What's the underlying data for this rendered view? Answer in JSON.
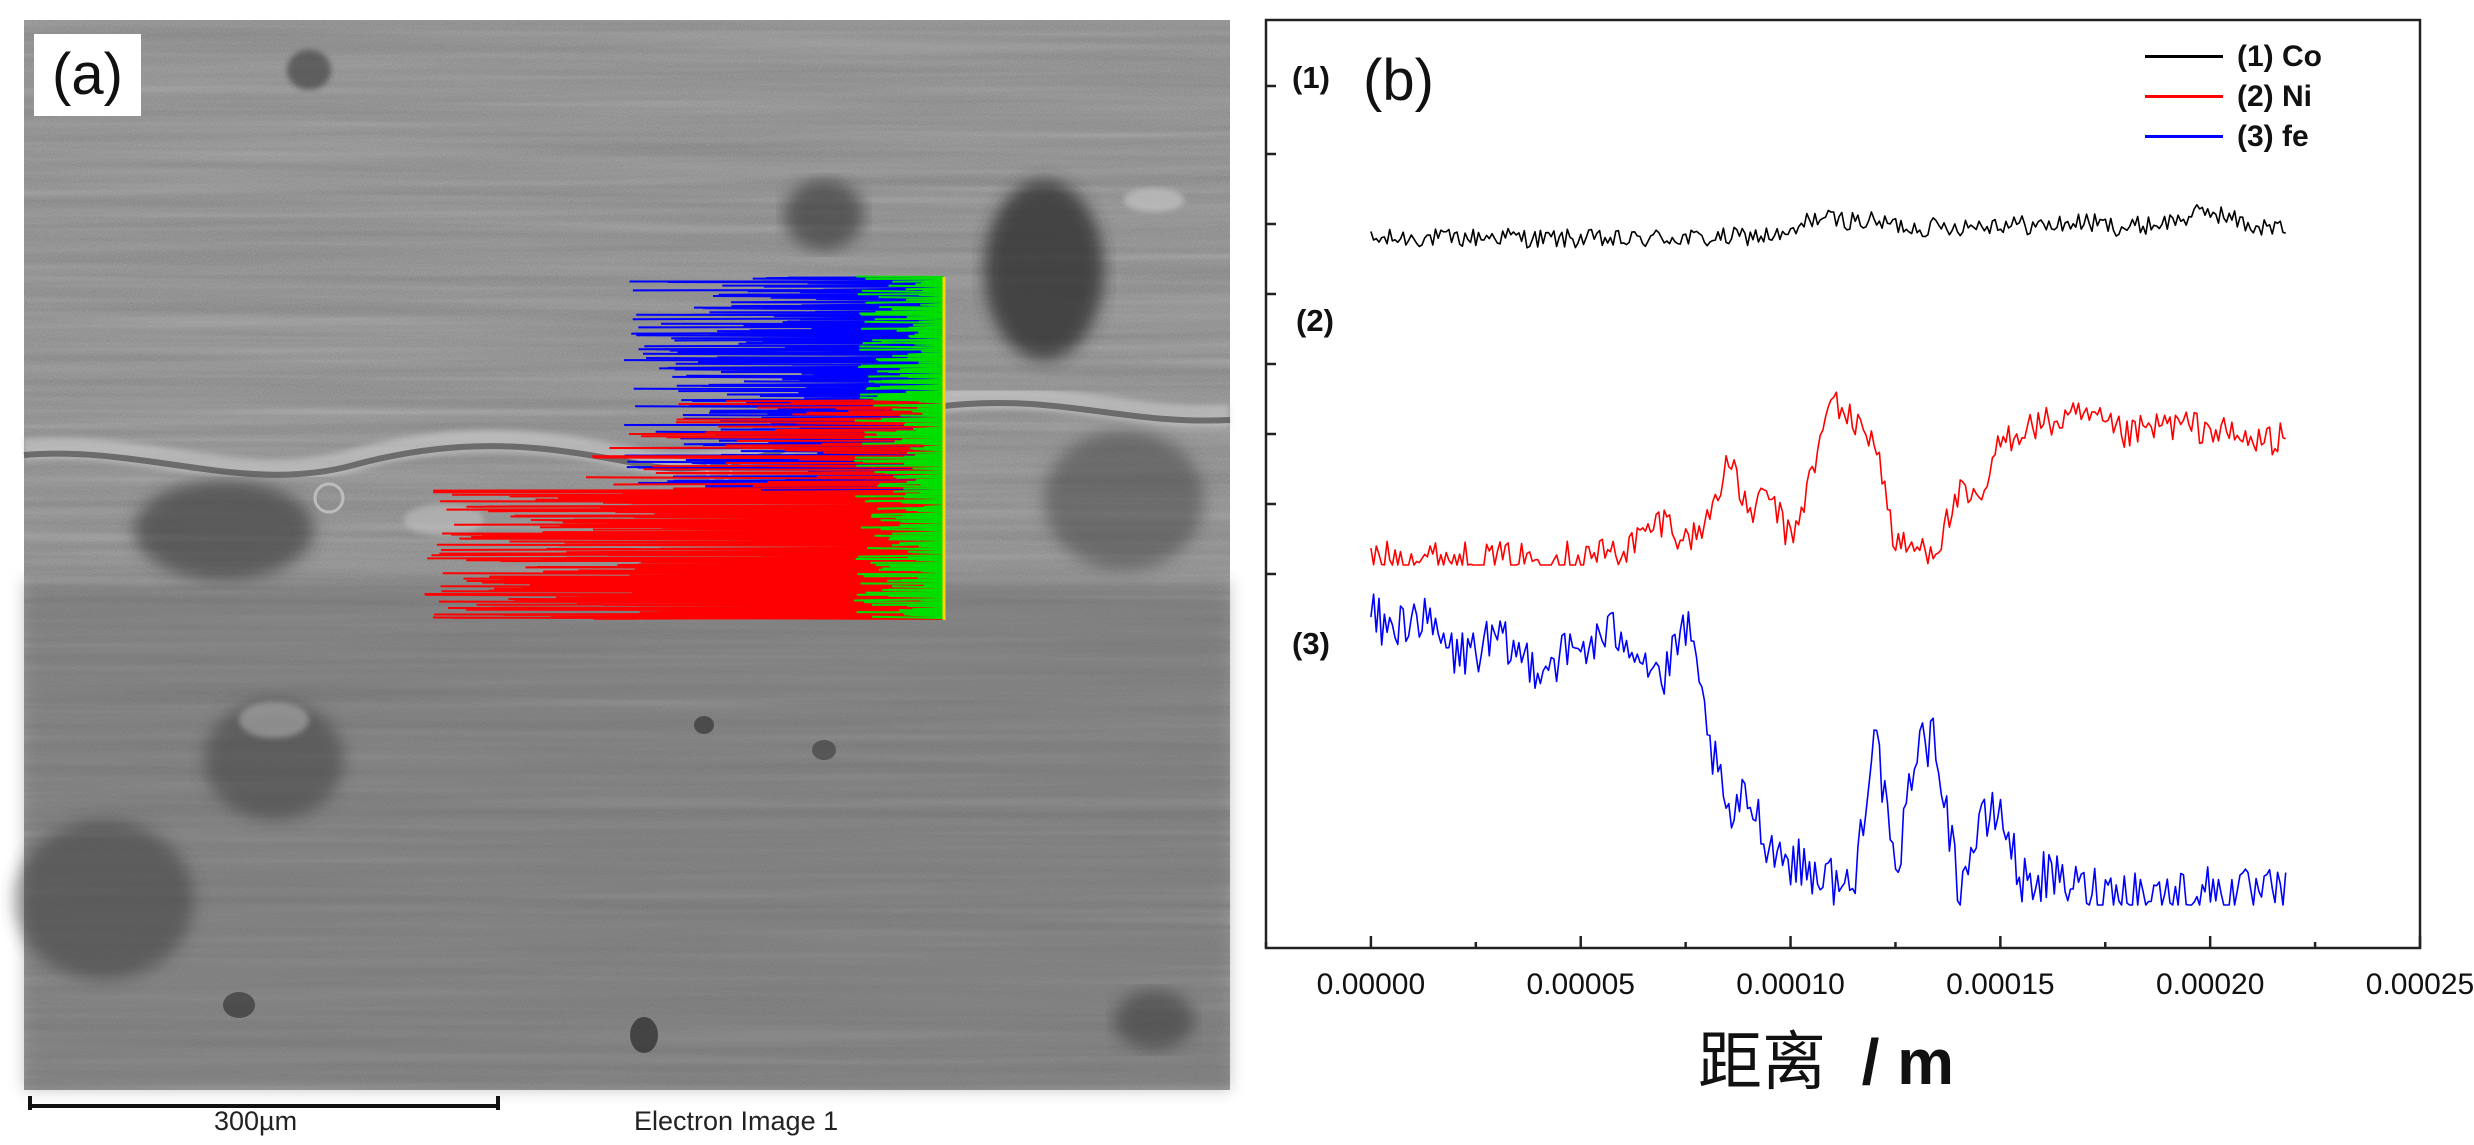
{
  "panel_a": {
    "label": "(a)",
    "scale_bar_text": "300µm",
    "caption": "Electron Image 1",
    "overlay_colors": {
      "co": "#00e000",
      "ni": "#ff0000",
      "fe": "#0000ff",
      "line": "#ffd400"
    }
  },
  "panel_b": {
    "label": "(b)",
    "series_labels": [
      "(1)",
      "(2)",
      "(3)"
    ]
  },
  "chart_data": {
    "type": "line",
    "xlabel": "距离 / m",
    "xlabel_main": "距离",
    "xlabel_unit": "/ m",
    "ylabel": "",
    "xlim": [
      -2.5e-05,
      0.00025
    ],
    "x_ticks": [
      "0.00000",
      "0.00005",
      "0.00010",
      "0.00015",
      "0.00020",
      "0.00025"
    ],
    "x_tick_values": [
      0,
      5e-05,
      0.0001,
      0.00015,
      0.0002,
      0.00025
    ],
    "y_ticks_shown": false,
    "legend_position": "top-right",
    "series": [
      {
        "name": "(1) Co",
        "color": "#000000",
        "x": [
          0,
          1e-05,
          2e-05,
          3e-05,
          4e-05,
          5e-05,
          6e-05,
          7e-05,
          8e-05,
          9e-05,
          0.0001,
          0.000105,
          0.00011,
          0.00012,
          0.00013,
          0.00014,
          0.00015,
          0.00016,
          0.00017,
          0.00018,
          0.00019,
          0.0002,
          0.00021,
          0.000218
        ],
        "values": [
          0.07,
          0.09,
          0.08,
          0.1,
          0.08,
          0.08,
          0.07,
          0.09,
          0.08,
          0.1,
          0.1,
          0.23,
          0.22,
          0.2,
          0.16,
          0.17,
          0.19,
          0.17,
          0.2,
          0.16,
          0.2,
          0.28,
          0.17,
          0.15
        ]
      },
      {
        "name": "(2) Ni",
        "color": "#ff0000",
        "x": [
          0,
          1e-05,
          2e-05,
          3e-05,
          4e-05,
          5e-05,
          6e-05,
          7e-05,
          7.5e-05,
          8e-05,
          8.5e-05,
          9e-05,
          9.5e-05,
          0.0001,
          0.000105,
          0.00011,
          0.000115,
          0.00012,
          0.000125,
          0.00013,
          0.000135,
          0.00014,
          0.000145,
          0.00015,
          0.000155,
          0.00016,
          0.00017,
          0.00018,
          0.00019,
          0.0002,
          0.00021,
          0.000218
        ],
        "values": [
          0.03,
          0.04,
          0.03,
          0.03,
          0.03,
          0.04,
          0.06,
          0.2,
          0.1,
          0.18,
          0.45,
          0.22,
          0.3,
          0.1,
          0.38,
          0.72,
          0.6,
          0.55,
          0.08,
          0.07,
          0.08,
          0.3,
          0.25,
          0.52,
          0.58,
          0.6,
          0.63,
          0.55,
          0.6,
          0.58,
          0.52,
          0.55
        ]
      },
      {
        "name": "(3) fe",
        "color": "#0000ff",
        "x": [
          0,
          5e-06,
          1e-05,
          2e-05,
          3e-05,
          4e-05,
          5e-05,
          6e-05,
          7e-05,
          7.5e-05,
          8e-05,
          8.5e-05,
          9e-05,
          9.5e-05,
          0.0001,
          0.00011,
          0.000115,
          0.00012,
          0.000125,
          0.00013,
          0.000135,
          0.00014,
          0.000145,
          0.00015,
          0.000155,
          0.00016,
          0.00017,
          0.00018,
          0.00019,
          0.0002,
          0.00021,
          0.000218
        ],
        "values": [
          0.9,
          0.85,
          0.92,
          0.78,
          0.82,
          0.75,
          0.8,
          0.86,
          0.7,
          0.88,
          0.56,
          0.26,
          0.34,
          0.19,
          0.14,
          0.08,
          0.04,
          0.58,
          0.05,
          0.52,
          0.5,
          0.05,
          0.24,
          0.3,
          0.07,
          0.09,
          0.05,
          0.04,
          0.03,
          0.05,
          0.03,
          0.04
        ]
      }
    ]
  }
}
